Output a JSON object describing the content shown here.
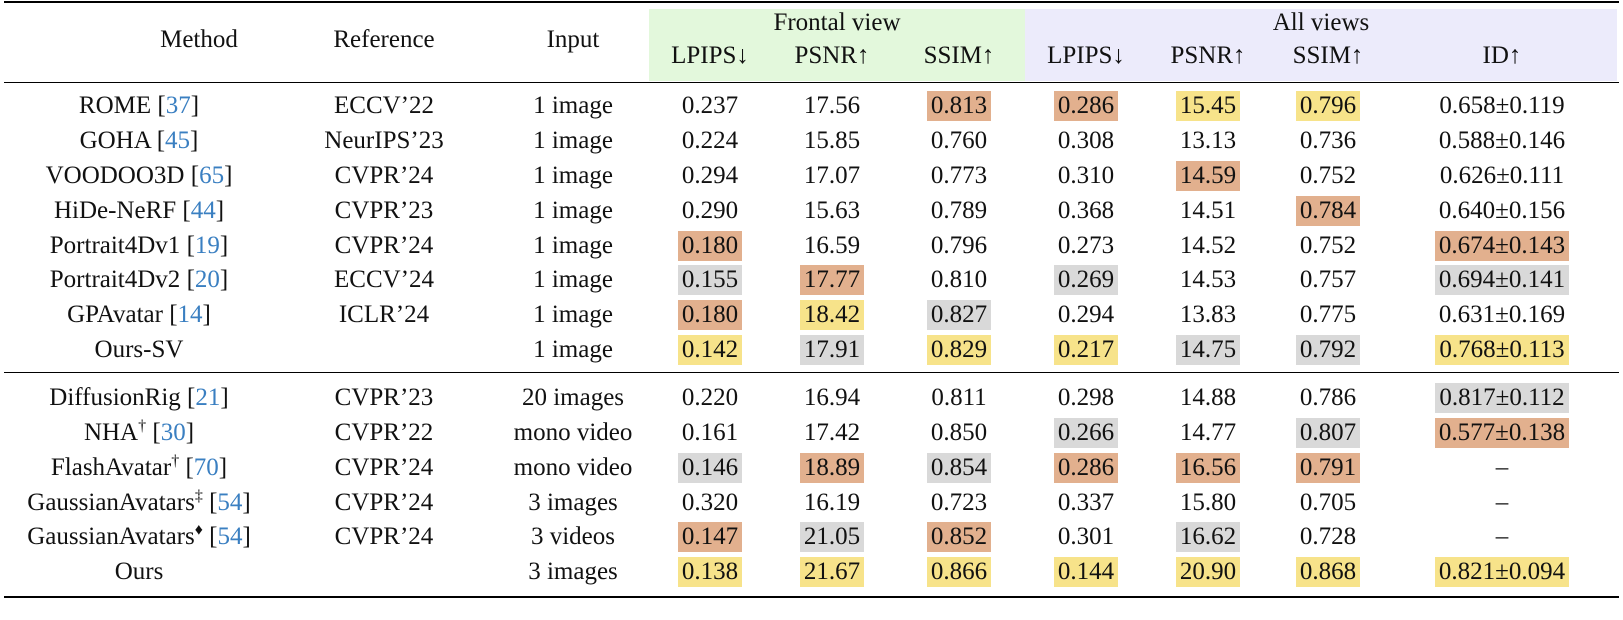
{
  "header": {
    "method": "Method",
    "reference": "Reference",
    "input": "Input",
    "group_frontal": "Frontal view",
    "group_all": "All views",
    "metrics": [
      "LPIPS↓",
      "PSNR↑",
      "SSIM↑",
      "LPIPS↓",
      "PSNR↑",
      "SSIM↑",
      "ID↑"
    ]
  },
  "colors": {
    "first": "#f7e38a",
    "second": "#e2b08e",
    "third": "#d9d9d9",
    "frontal_band": "#e3f8dc",
    "all_band": "#ecebfb",
    "cite": "#3a7fc1"
  },
  "rows": [
    {
      "name": "ROME",
      "mark": "",
      "cite": "37",
      "ref": "ECCV’22",
      "input": "1 image",
      "vals": [
        "0.237",
        "17.56",
        "0.813",
        "0.286",
        "15.45",
        "0.796",
        "0.658±0.119"
      ],
      "hl": [
        "",
        "",
        "o",
        "o",
        "y",
        "y",
        ""
      ]
    },
    {
      "name": "GOHA",
      "mark": "",
      "cite": "45",
      "ref": "NeurIPS’23",
      "input": "1 image",
      "vals": [
        "0.224",
        "15.85",
        "0.760",
        "0.308",
        "13.13",
        "0.736",
        "0.588±0.146"
      ],
      "hl": [
        "",
        "",
        "",
        "",
        "",
        "",
        ""
      ]
    },
    {
      "name": "VOODOO3D",
      "mark": "",
      "cite": "65",
      "ref": "CVPR’24",
      "input": "1 image",
      "vals": [
        "0.294",
        "17.07",
        "0.773",
        "0.310",
        "14.59",
        "0.752",
        "0.626±0.111"
      ],
      "hl": [
        "",
        "",
        "",
        "",
        "o",
        "",
        ""
      ]
    },
    {
      "name": "HiDe-NeRF",
      "mark": "",
      "cite": "44",
      "ref": "CVPR’23",
      "input": "1 image",
      "vals": [
        "0.290",
        "15.63",
        "0.789",
        "0.368",
        "14.51",
        "0.784",
        "0.640±0.156"
      ],
      "hl": [
        "",
        "",
        "",
        "",
        "",
        "o",
        ""
      ]
    },
    {
      "name": "Portrait4Dv1",
      "mark": "",
      "cite": "19",
      "ref": "CVPR’24",
      "input": "1 image",
      "vals": [
        "0.180",
        "16.59",
        "0.796",
        "0.273",
        "14.52",
        "0.752",
        "0.674±0.143"
      ],
      "hl": [
        "o",
        "",
        "",
        "",
        "",
        "",
        "o"
      ]
    },
    {
      "name": "Portrait4Dv2",
      "mark": "",
      "cite": "20",
      "ref": "ECCV’24",
      "input": "1 image",
      "vals": [
        "0.155",
        "17.77",
        "0.810",
        "0.269",
        "14.53",
        "0.757",
        "0.694±0.141"
      ],
      "hl": [
        "g",
        "o",
        "",
        "g",
        "",
        "",
        "g"
      ]
    },
    {
      "name": "GPAvatar",
      "mark": "",
      "cite": "14",
      "ref": "ICLR’24",
      "input": "1 image",
      "vals": [
        "0.180",
        "18.42",
        "0.827",
        "0.294",
        "13.83",
        "0.775",
        "0.631±0.169"
      ],
      "hl": [
        "o",
        "y",
        "g",
        "",
        "",
        "",
        ""
      ]
    },
    {
      "name": "Ours-SV",
      "mark": "",
      "cite": "",
      "ref": "",
      "input": "1 image",
      "vals": [
        "0.142",
        "17.91",
        "0.829",
        "0.217",
        "14.75",
        "0.792",
        "0.768±0.113"
      ],
      "hl": [
        "y",
        "g",
        "y",
        "y",
        "g",
        "g",
        "y"
      ]
    },
    {
      "name": "DiffusionRig",
      "mark": "",
      "cite": "21",
      "ref": "CVPR’23",
      "input": "20 images",
      "vals": [
        "0.220",
        "16.94",
        "0.811",
        "0.298",
        "14.88",
        "0.786",
        "0.817±0.112"
      ],
      "hl": [
        "",
        "",
        "",
        "",
        "",
        "",
        "g"
      ]
    },
    {
      "name": "NHA",
      "mark": "†",
      "cite": "30",
      "ref": "CVPR’22",
      "input": "mono video",
      "vals": [
        "0.161",
        "17.42",
        "0.850",
        "0.266",
        "14.77",
        "0.807",
        "0.577±0.138"
      ],
      "hl": [
        "",
        "",
        "",
        "g",
        "",
        "g",
        "o"
      ]
    },
    {
      "name": "FlashAvatar",
      "mark": "†",
      "cite": "70",
      "ref": "CVPR’24",
      "input": "mono video",
      "vals": [
        "0.146",
        "18.89",
        "0.854",
        "0.286",
        "16.56",
        "0.791",
        "–"
      ],
      "hl": [
        "g",
        "o",
        "g",
        "o",
        "o",
        "o",
        ""
      ]
    },
    {
      "name": "GaussianAvatars",
      "mark": "‡",
      "cite": "54",
      "ref": "CVPR’24",
      "input": "3 images",
      "vals": [
        "0.320",
        "16.19",
        "0.723",
        "0.337",
        "15.80",
        "0.705",
        "–"
      ],
      "hl": [
        "",
        "",
        "",
        "",
        "",
        "",
        ""
      ]
    },
    {
      "name": "GaussianAvatars",
      "mark": "♦",
      "cite": "54",
      "ref": "CVPR’24",
      "input": "3 videos",
      "vals": [
        "0.147",
        "21.05",
        "0.852",
        "0.301",
        "16.62",
        "0.728",
        "–"
      ],
      "hl": [
        "o",
        "g",
        "o",
        "",
        "g",
        "",
        ""
      ]
    },
    {
      "name": "Ours",
      "mark": "",
      "cite": "",
      "ref": "",
      "input": "3 images",
      "vals": [
        "0.138",
        "21.67",
        "0.866",
        "0.144",
        "20.90",
        "0.868",
        "0.821±0.094"
      ],
      "hl": [
        "y",
        "y",
        "y",
        "y",
        "y",
        "y",
        "y"
      ]
    }
  ]
}
